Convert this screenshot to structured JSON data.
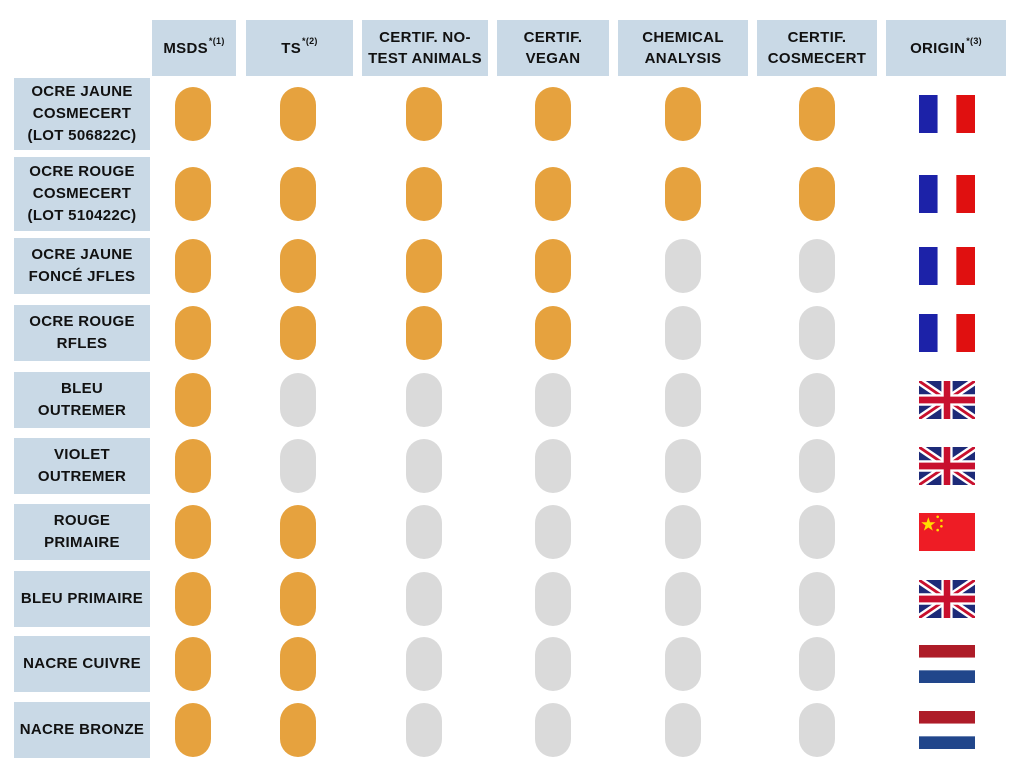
{
  "columns": [
    {
      "label": "MSDS",
      "note": "*(1)"
    },
    {
      "label": "TS",
      "note": "*(2)"
    },
    {
      "label": "CERTIF. NO-TEST ANIMALS",
      "note": ""
    },
    {
      "label": "CERTIF. VEGAN",
      "note": ""
    },
    {
      "label": "CHEMICAL ANALYSIS",
      "note": ""
    },
    {
      "label": "CERTIF. COSMECERT",
      "note": ""
    },
    {
      "label": "ORIGIN",
      "note": "*(3)"
    }
  ],
  "colors": {
    "available": "#e6a23e",
    "unavailable": "#dadada",
    "header_bg": "#c9d9e6"
  },
  "rows": [
    {
      "label": "OCRE JAUNE COSMECERT (LOT 506822C)",
      "status": [
        true,
        true,
        true,
        true,
        true,
        true
      ],
      "origin": "france-flag-icon"
    },
    {
      "label": "OCRE ROUGE COSMECERT (LOT 510422C)",
      "status": [
        true,
        true,
        true,
        true,
        true,
        true
      ],
      "origin": "france-flag-icon"
    },
    {
      "label": "OCRE JAUNE FONCÉ JFLES",
      "status": [
        true,
        true,
        true,
        true,
        false,
        false
      ],
      "origin": "france-flag-icon"
    },
    {
      "label": "OCRE ROUGE RFLES",
      "status": [
        true,
        true,
        true,
        true,
        false,
        false
      ],
      "origin": "france-flag-icon"
    },
    {
      "label": "BLEU OUTREMER",
      "status": [
        true,
        false,
        false,
        false,
        false,
        false
      ],
      "origin": "uk-flag-icon"
    },
    {
      "label": "VIOLET OUTREMER",
      "status": [
        true,
        false,
        false,
        false,
        false,
        false
      ],
      "origin": "uk-flag-icon"
    },
    {
      "label": "ROUGE PRIMAIRE",
      "status": [
        true,
        true,
        false,
        false,
        false,
        false
      ],
      "origin": "china-flag-icon"
    },
    {
      "label": "BLEU PRIMAIRE",
      "status": [
        true,
        true,
        false,
        false,
        false,
        false
      ],
      "origin": "uk-flag-icon"
    },
    {
      "label": "NACRE CUIVRE",
      "status": [
        true,
        true,
        false,
        false,
        false,
        false
      ],
      "origin": "netherlands-flag-icon"
    },
    {
      "label": "NACRE BRONZE",
      "status": [
        true,
        true,
        false,
        false,
        false,
        false
      ],
      "origin": "netherlands-flag-icon"
    }
  ]
}
